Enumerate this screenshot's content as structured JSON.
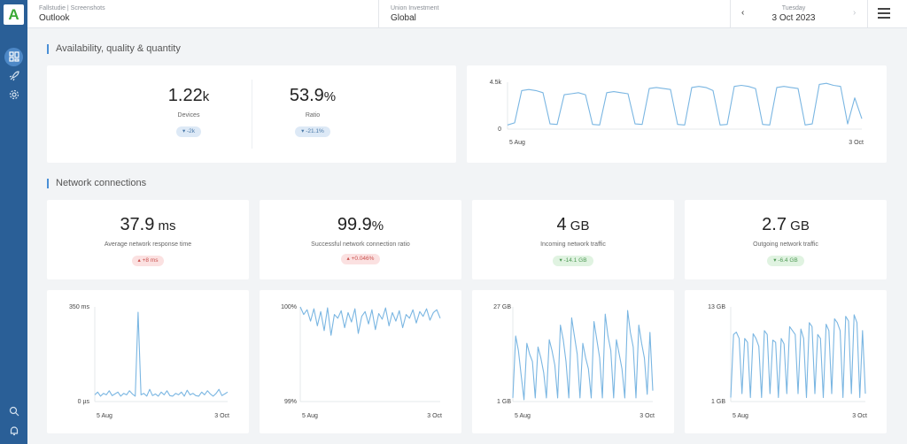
{
  "sidebar": {
    "logo": "A",
    "icons": [
      "dashboard-icon",
      "rocket-icon",
      "gear-icon",
      "search-icon",
      "bell-icon"
    ]
  },
  "header": {
    "context_small": "Fallstudie | Screenshots",
    "context_big": "Outlook",
    "org_small": "Union Investment",
    "org_big": "Global",
    "day": "Tuesday",
    "date": "3 Oct 2023",
    "prev": "‹",
    "next": "›"
  },
  "sections": {
    "availability": "Availability, quality & quantity",
    "network": "Network connections"
  },
  "kpis": {
    "devices": {
      "value": "1.22",
      "unit": "k",
      "label": "Devices",
      "delta": "▾ -2k"
    },
    "ratio": {
      "value": "53.9",
      "unit": "%",
      "label": "Ratio",
      "delta": "▾ -21.1%"
    },
    "response": {
      "value": "37.9",
      "unit": " ms",
      "label": "Average network response time",
      "delta": "▴ +8 ms"
    },
    "success": {
      "value": "99.9",
      "unit": "%",
      "label": "Successful network connection ratio",
      "delta": "▴ +0.046%"
    },
    "incoming": {
      "value": "4",
      "unit": " GB",
      "label": "Incoming network traffic",
      "delta": "▾ -14.1 GB"
    },
    "outgoing": {
      "value": "2.7",
      "unit": " GB",
      "label": "Outgoing network traffic",
      "delta": "▾ -6.4 GB"
    }
  },
  "colors": {
    "line": "#7ab6e2",
    "accent": "#4a8fd6",
    "sidebar": "#2a5f97"
  },
  "chart_data": [
    {
      "id": "devices-trend",
      "type": "line",
      "ylim": [
        0,
        4500
      ],
      "y_ticks": [
        "4.5k",
        "0"
      ],
      "x_ticks": [
        "5 Aug",
        "3 Oct"
      ],
      "values": [
        400,
        600,
        3700,
        3800,
        3700,
        3500,
        500,
        450,
        3300,
        3400,
        3500,
        3300,
        450,
        400,
        3500,
        3600,
        3500,
        3400,
        500,
        450,
        3900,
        4000,
        3900,
        3800,
        450,
        400,
        4000,
        4100,
        4000,
        3700,
        400,
        450,
        4100,
        4200,
        4100,
        3900,
        450,
        400,
        4000,
        4100,
        4000,
        3900,
        400,
        500,
        4300,
        4400,
        4200,
        4100,
        500,
        3000,
        1000
      ]
    },
    {
      "id": "response-time",
      "type": "line",
      "ylim": [
        0,
        350
      ],
      "y_ticks": [
        "350 ms",
        "0 µs"
      ],
      "x_ticks": [
        "5 Aug",
        "3 Oct"
      ],
      "values": [
        25,
        35,
        20,
        30,
        25,
        40,
        22,
        28,
        35,
        20,
        30,
        25,
        40,
        28,
        20,
        330,
        25,
        30,
        20,
        45,
        22,
        28,
        20,
        35,
        25,
        40,
        22,
        20,
        30,
        25,
        35,
        20,
        42,
        25,
        30,
        22,
        20,
        35,
        25,
        40,
        28,
        20,
        30,
        45,
        22,
        28,
        35
      ]
    },
    {
      "id": "connection-ratio",
      "type": "line",
      "ylim": [
        99,
        100
      ],
      "y_ticks": [
        "100%",
        "99%"
      ],
      "x_ticks": [
        "5 Aug",
        "3 Oct"
      ],
      "values": [
        100,
        99.92,
        99.97,
        99.85,
        99.98,
        99.8,
        99.95,
        99.75,
        99.99,
        99.7,
        99.92,
        99.88,
        99.96,
        99.78,
        99.94,
        99.84,
        99.98,
        99.72,
        99.9,
        99.95,
        99.82,
        99.97,
        99.76,
        99.93,
        99.87,
        99.99,
        99.8,
        99.94,
        99.85,
        99.96,
        99.78,
        99.92,
        99.88,
        99.97,
        99.83,
        99.95,
        99.9,
        99.98,
        99.86,
        99.94,
        99.97,
        99.88
      ]
    },
    {
      "id": "incoming-traffic",
      "type": "line",
      "ylim": [
        1,
        27
      ],
      "y_ticks": [
        "27 GB",
        "1 GB"
      ],
      "x_ticks": [
        "5 Aug",
        "3 Oct"
      ],
      "values": [
        2,
        19,
        15,
        8,
        1.5,
        17,
        14,
        12,
        2,
        16,
        13,
        9,
        2,
        18,
        15,
        11,
        2,
        22,
        18,
        12,
        2,
        24,
        19,
        14,
        2,
        17,
        13,
        10,
        2,
        23,
        18,
        13,
        2,
        25,
        19,
        15,
        2,
        18,
        14,
        10,
        2,
        26,
        20,
        16,
        2,
        22,
        17,
        13,
        3,
        20,
        4
      ]
    },
    {
      "id": "outgoing-traffic",
      "type": "line",
      "ylim": [
        1,
        13
      ],
      "y_ticks": [
        "13 GB",
        "1 GB"
      ],
      "x_ticks": [
        "5 Aug",
        "3 Oct"
      ],
      "values": [
        1.5,
        9.5,
        9.8,
        9,
        2,
        9,
        8.5,
        1.5,
        9.6,
        9,
        8,
        1.5,
        10,
        9.5,
        2,
        8.8,
        8.5,
        1.5,
        9,
        8.3,
        2,
        10.5,
        10,
        9.5,
        2,
        10.2,
        9,
        1.5,
        11,
        10.5,
        2,
        9.5,
        9,
        1.5,
        10.8,
        10,
        2,
        11.5,
        11,
        10,
        1.5,
        11.8,
        11.2,
        2,
        12,
        11,
        1.5,
        10,
        2
      ]
    }
  ]
}
